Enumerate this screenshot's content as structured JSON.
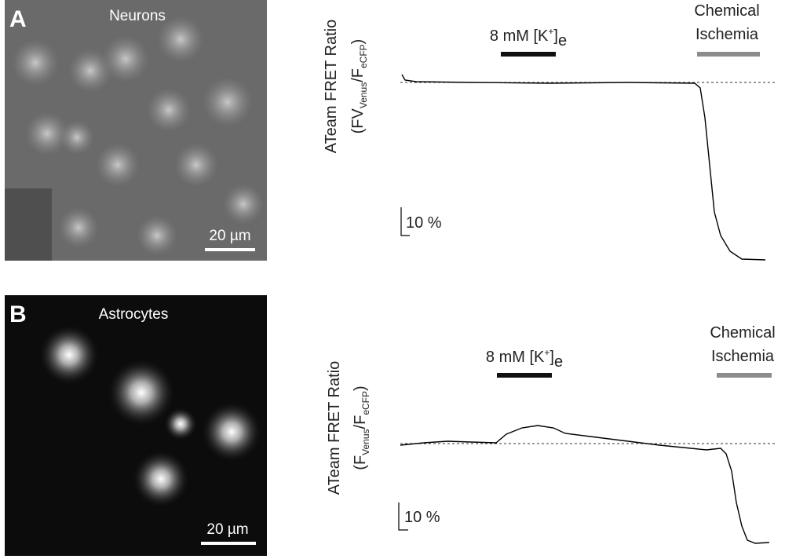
{
  "panel_a": {
    "letter": "A",
    "image_label": "Neurons",
    "scale_bar": "20 µm",
    "y_label": "ATeam FRET Ratio",
    "y_label_units": [
      "(FV",
      "Venus",
      "/F",
      "eCFP",
      ")"
    ],
    "stimulus": [
      "8 mM [K",
      "+",
      "]",
      "e"
    ],
    "ischemia": [
      "Chemical",
      "Ischemia"
    ],
    "trace_scale": "10 %"
  },
  "panel_b": {
    "letter": "B",
    "image_label": "Astrocytes",
    "scale_bar": "20 µm",
    "y_label": "ATeam FRET Ratio",
    "y_label_units": [
      "(F",
      "Venus",
      "/F",
      "eCFP",
      ")"
    ],
    "stimulus": [
      "8 mM [K",
      "+",
      "]",
      "e"
    ],
    "ischemia": [
      "Chemical",
      "Ischemia"
    ],
    "trace_scale": "10 %"
  }
}
